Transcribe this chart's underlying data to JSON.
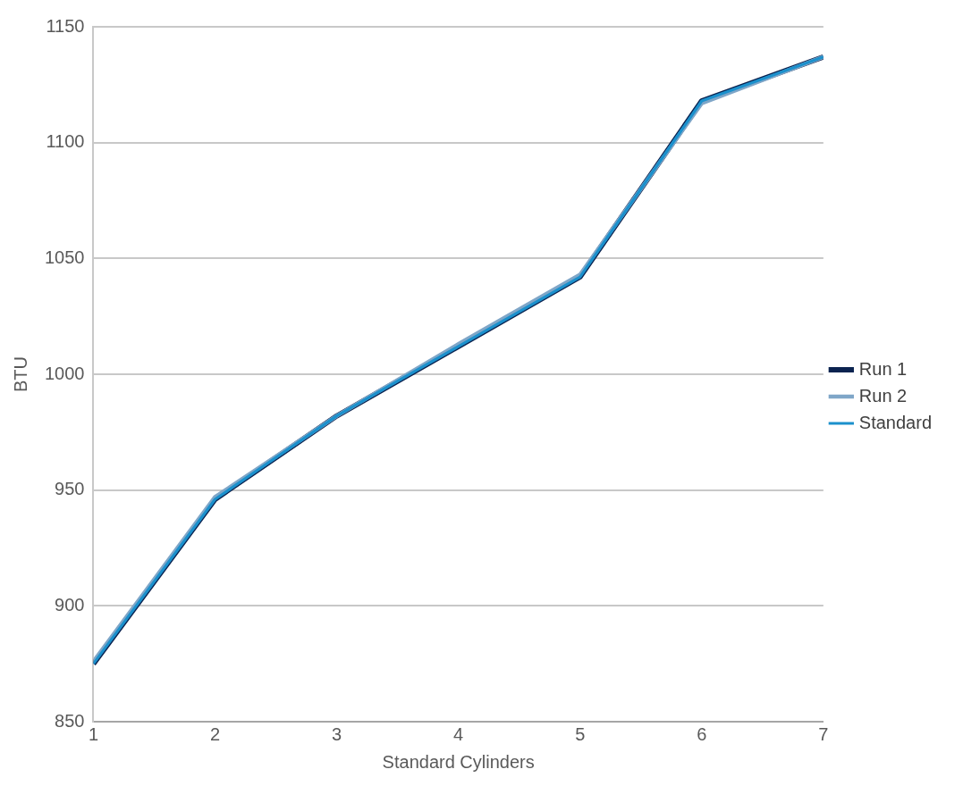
{
  "chart_data": {
    "type": "line",
    "xlabel": "Standard Cylinders",
    "ylabel": "BTU",
    "x": [
      1,
      2,
      3,
      4,
      5,
      6,
      7
    ],
    "series": [
      {
        "name": "Run 1",
        "color": "#0b2350",
        "values": [
          875,
          946,
          982,
          1012,
          1042,
          1118,
          1137
        ]
      },
      {
        "name": "Run 2",
        "color": "#7fa6c8",
        "values": [
          876,
          947,
          982,
          1013,
          1043,
          1117,
          1137
        ]
      },
      {
        "name": "Standard",
        "color": "#1b90cc",
        "values": [
          875,
          946,
          982,
          1012,
          1042,
          1118,
          1137
        ]
      }
    ],
    "xlim": [
      1,
      7
    ],
    "xticks": [
      1,
      2,
      3,
      4,
      5,
      6,
      7
    ],
    "ylim": [
      850,
      1150
    ],
    "yticks": [
      850,
      900,
      950,
      1000,
      1050,
      1100,
      1150
    ],
    "grid": "y",
    "legend": "right",
    "marker": "none",
    "line_style": "solid"
  }
}
